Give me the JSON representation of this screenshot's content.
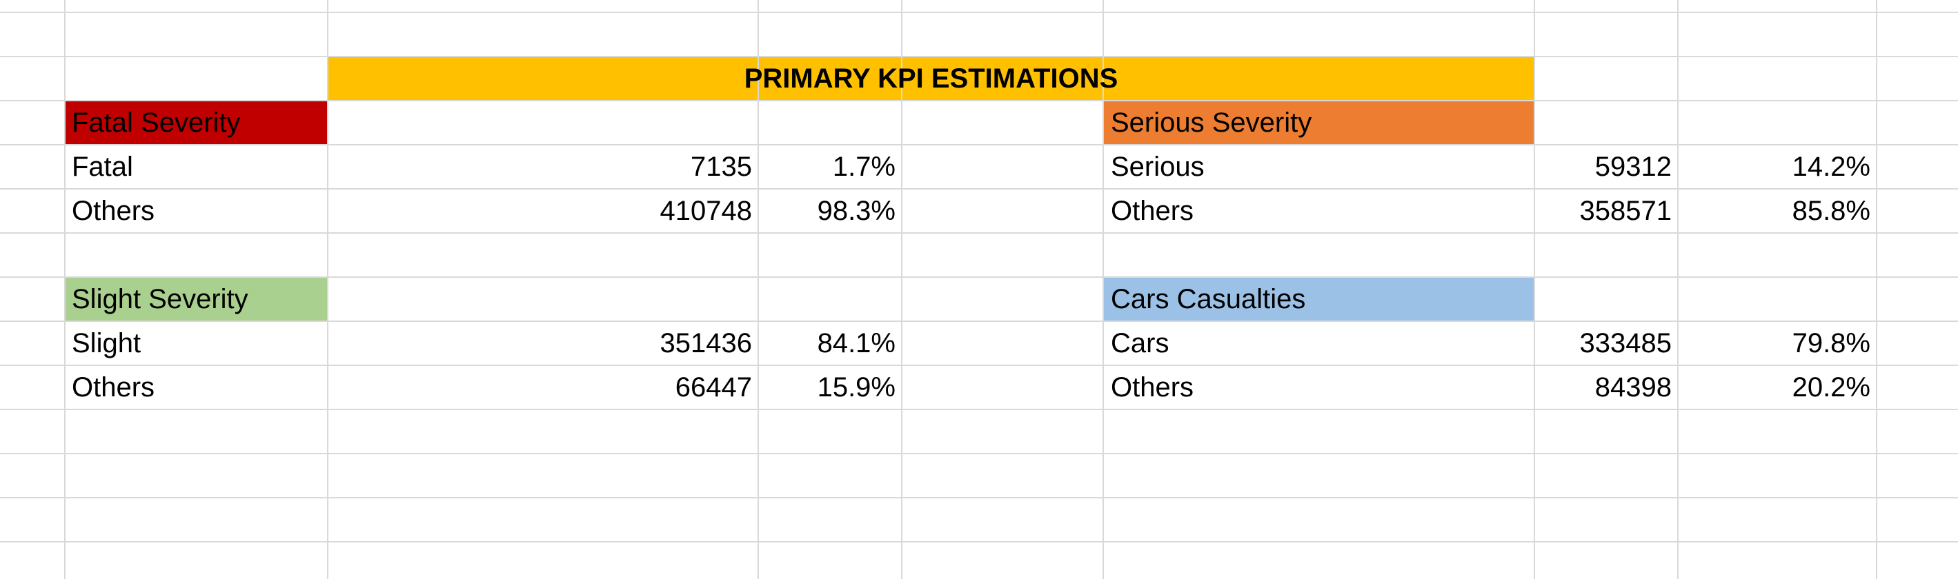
{
  "sheet": {
    "banner": {
      "title": "PRIMARY KPI ESTIMATIONS",
      "color": "#FFC000"
    },
    "fatal": {
      "header": "Fatal Severity",
      "header_color": "#C00000",
      "rows": [
        {
          "label": "Fatal",
          "count": "7135",
          "pct": "1.7%"
        },
        {
          "label": "Others",
          "count": "410748",
          "pct": "98.3%"
        }
      ]
    },
    "serious": {
      "header": "Serious Severity",
      "header_color": "#ED7D31",
      "rows": [
        {
          "label": "Serious",
          "count": "59312",
          "pct": "14.2%"
        },
        {
          "label": "Others",
          "count": "358571",
          "pct": "85.8%"
        }
      ]
    },
    "slight": {
      "header": "Slight Severity",
      "header_color": "#A9D08E",
      "rows": [
        {
          "label": "Slight",
          "count": "351436",
          "pct": "84.1%"
        },
        {
          "label": "Others",
          "count": "66447",
          "pct": "15.9%"
        }
      ]
    },
    "cars": {
      "header": "Cars Casualties",
      "header_color": "#9BC2E6",
      "rows": [
        {
          "label": "Cars",
          "count": "333485",
          "pct": "79.8%"
        },
        {
          "label": "Others",
          "count": "84398",
          "pct": "20.2%"
        }
      ]
    }
  }
}
